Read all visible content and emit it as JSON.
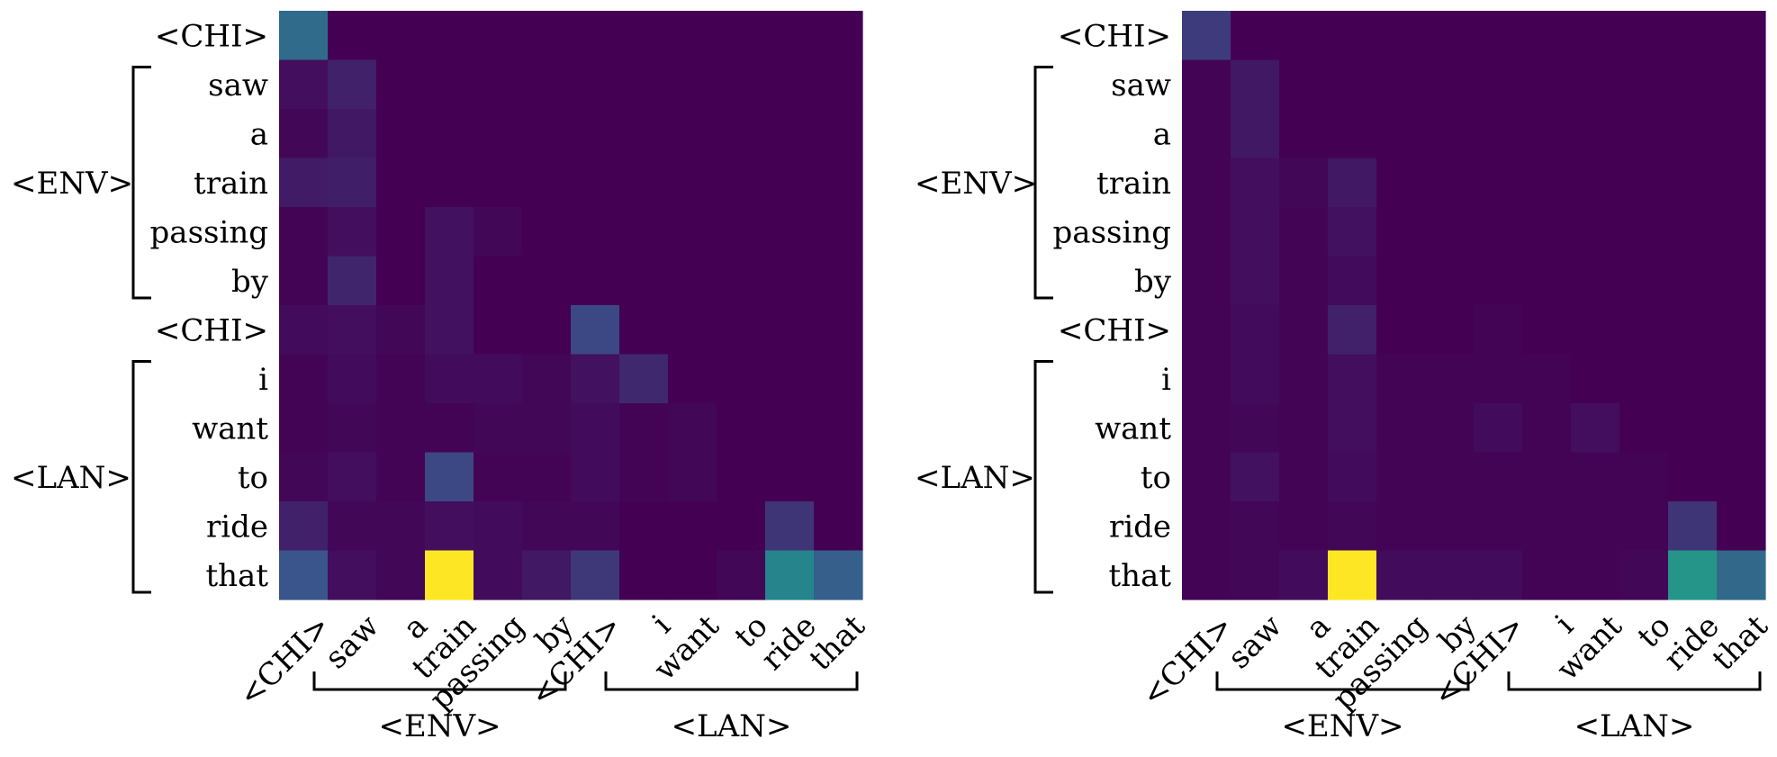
{
  "figure": {
    "colormap": [
      "#440154",
      "#3b528b",
      "#21918c",
      "#5ec962",
      "#fde725"
    ]
  },
  "chart_data": [
    {
      "type": "heatmap",
      "title": "",
      "row_labels": [
        "<CHI>",
        "saw",
        "a",
        "train",
        "passing",
        "by",
        "<CHI>",
        "i",
        "want",
        "to",
        "ride",
        "that"
      ],
      "col_labels": [
        "<CHI>",
        "saw",
        "a",
        "train",
        "passing",
        "by",
        "<CHI>",
        "i",
        "want",
        "to",
        "ride",
        "that"
      ],
      "row_groups": [
        {
          "label": "<ENV>",
          "start": 1,
          "end": 5
        },
        {
          "label": "<LAN>",
          "start": 7,
          "end": 11
        }
      ],
      "col_groups": [
        {
          "label": "<ENV>",
          "start": 1,
          "end": 5
        },
        {
          "label": "<LAN>",
          "start": 7,
          "end": 11
        }
      ],
      "value_range": [
        0,
        1
      ],
      "values": [
        [
          0.35,
          0,
          0,
          0,
          0,
          0,
          0,
          0,
          0,
          0,
          0,
          0
        ],
        [
          0.04,
          0.1,
          0,
          0,
          0,
          0,
          0,
          0,
          0,
          0,
          0,
          0
        ],
        [
          0.02,
          0.07,
          0,
          0,
          0,
          0,
          0,
          0,
          0,
          0,
          0,
          0
        ],
        [
          0.08,
          0.09,
          0,
          0,
          0,
          0,
          0,
          0,
          0,
          0,
          0,
          0
        ],
        [
          0.01,
          0.04,
          0,
          0.05,
          0.02,
          0,
          0,
          0,
          0,
          0,
          0,
          0
        ],
        [
          0.01,
          0.11,
          0,
          0.05,
          0,
          0,
          0,
          0,
          0,
          0,
          0,
          0
        ],
        [
          0.03,
          0.04,
          0.02,
          0.05,
          0,
          0,
          0.22,
          0,
          0,
          0,
          0,
          0
        ],
        [
          0.01,
          0.03,
          0.01,
          0.03,
          0.03,
          0.02,
          0.05,
          0.12,
          0,
          0,
          0,
          0
        ],
        [
          0.01,
          0.02,
          0.01,
          0.01,
          0.02,
          0.02,
          0.03,
          0.01,
          0.02,
          0,
          0,
          0
        ],
        [
          0.02,
          0.04,
          0.01,
          0.22,
          0.01,
          0.01,
          0.03,
          0.01,
          0.02,
          0,
          0,
          0
        ],
        [
          0.1,
          0.02,
          0.02,
          0.04,
          0.03,
          0.02,
          0.02,
          0,
          0,
          0,
          0.16,
          0
        ],
        [
          0.26,
          0.04,
          0.02,
          1.0,
          0.03,
          0.07,
          0.17,
          0,
          0,
          0.02,
          0.45,
          0.3
        ]
      ]
    },
    {
      "type": "heatmap",
      "title": "",
      "row_labels": [
        "<CHI>",
        "saw",
        "a",
        "train",
        "passing",
        "by",
        "<CHI>",
        "i",
        "want",
        "to",
        "ride",
        "that"
      ],
      "col_labels": [
        "<CHI>",
        "saw",
        "a",
        "train",
        "passing",
        "by",
        "<CHI>",
        "i",
        "want",
        "to",
        "ride",
        "that"
      ],
      "row_groups": [
        {
          "label": "<ENV>",
          "start": 1,
          "end": 5
        },
        {
          "label": "<LAN>",
          "start": 7,
          "end": 11
        }
      ],
      "col_groups": [
        {
          "label": "<ENV>",
          "start": 1,
          "end": 5
        },
        {
          "label": "<LAN>",
          "start": 7,
          "end": 11
        }
      ],
      "value_range": [
        0,
        1
      ],
      "values": [
        [
          0.18,
          0,
          0,
          0,
          0,
          0,
          0,
          0,
          0,
          0,
          0,
          0
        ],
        [
          0.01,
          0.07,
          0,
          0,
          0,
          0,
          0,
          0,
          0,
          0,
          0,
          0
        ],
        [
          0.01,
          0.07,
          0,
          0,
          0,
          0,
          0,
          0,
          0,
          0,
          0,
          0
        ],
        [
          0.01,
          0.04,
          0.02,
          0.07,
          0,
          0,
          0,
          0,
          0,
          0,
          0,
          0
        ],
        [
          0.01,
          0.04,
          0.01,
          0.05,
          0,
          0,
          0,
          0,
          0,
          0,
          0,
          0
        ],
        [
          0.01,
          0.04,
          0.01,
          0.03,
          0,
          0,
          0,
          0,
          0,
          0,
          0,
          0
        ],
        [
          0.01,
          0.03,
          0.01,
          0.1,
          0,
          0,
          0.01,
          0,
          0,
          0,
          0,
          0
        ],
        [
          0.01,
          0.03,
          0.01,
          0.04,
          0.01,
          0.01,
          0.01,
          0.01,
          0,
          0,
          0,
          0
        ],
        [
          0.01,
          0.02,
          0.01,
          0.04,
          0.01,
          0.01,
          0.03,
          0.01,
          0.04,
          0,
          0,
          0
        ],
        [
          0.01,
          0.05,
          0.01,
          0.03,
          0.01,
          0.01,
          0.01,
          0.01,
          0.01,
          0.01,
          0,
          0
        ],
        [
          0.01,
          0.02,
          0.01,
          0.02,
          0.01,
          0.01,
          0.01,
          0.01,
          0.01,
          0.01,
          0.16,
          0
        ],
        [
          0.01,
          0.02,
          0.03,
          1.0,
          0.03,
          0.03,
          0.03,
          0.01,
          0.01,
          0.02,
          0.52,
          0.34
        ]
      ]
    }
  ]
}
